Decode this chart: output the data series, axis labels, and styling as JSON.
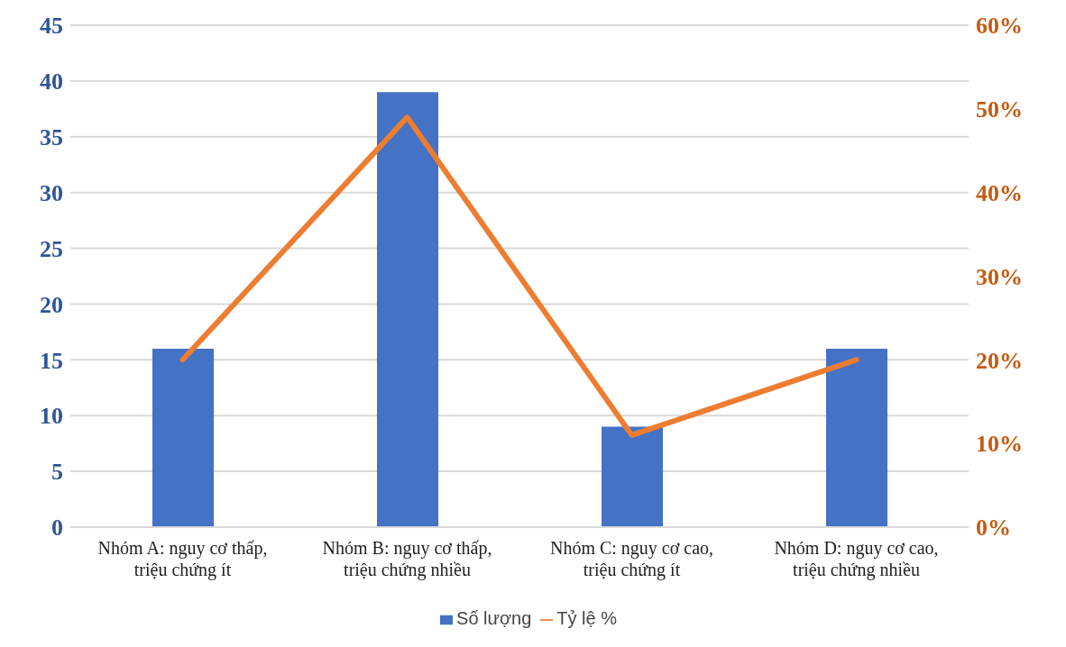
{
  "chart_data": {
    "type": "bar",
    "categories": [
      "Nhóm A: nguy cơ thấp, triệu chứng ít",
      "Nhóm B: nguy cơ thấp, triệu chứng nhiều",
      "Nhóm C: nguy cơ cao, triệu chứng ít",
      "Nhóm D: nguy cơ cao, triệu chứng nhiều"
    ],
    "series": [
      {
        "name": "Số lượng",
        "color": "#4472c4",
        "values": [
          16,
          39,
          9,
          16
        ]
      },
      {
        "name": "Tỷ lệ %",
        "type": "line",
        "axis": "y2",
        "color": "#ed7d31",
        "values": [
          20,
          49,
          11,
          20
        ]
      }
    ],
    "ylim": [
      0,
      45
    ],
    "yticks": [
      0,
      5,
      10,
      15,
      20,
      25,
      30,
      35,
      40,
      45
    ],
    "y2lim": [
      0,
      60
    ],
    "y2ticks": [
      {
        "value": 0,
        "label": "0%"
      },
      {
        "value": 10,
        "label": "10%"
      },
      {
        "value": 20,
        "label": "20%"
      },
      {
        "value": 30,
        "label": "30%"
      },
      {
        "value": 40,
        "label": "40%"
      },
      {
        "value": 50,
        "label": "50%"
      },
      {
        "value": 60,
        "label": "60%"
      }
    ],
    "grid": "y",
    "legend": "bottom",
    "marker": "none",
    "line_style": "solid"
  }
}
